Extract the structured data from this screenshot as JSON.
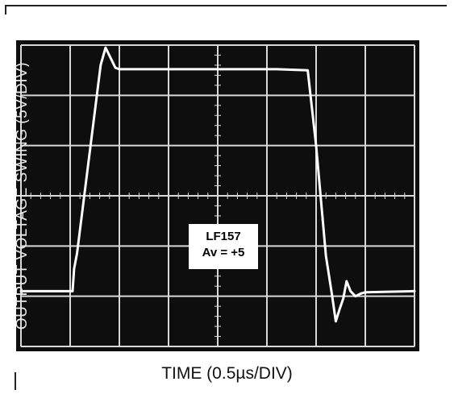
{
  "chart_data": {
    "type": "line",
    "xlabel": "TIME (0.5µs/DIV)",
    "ylabel": "OUTPUT VOLTAGE SWING (5V/DIV)",
    "annotation": [
      "LF157",
      "Av = +5"
    ],
    "grid": true,
    "grid_divisions": {
      "x": 8,
      "y": 6
    },
    "xlim": [
      0,
      8
    ],
    "ylim": [
      0,
      6
    ],
    "background_color": "#0e0e0e",
    "trace_color": "#ffffff",
    "grid_color": "#d8d8d8",
    "series": [
      {
        "x": [
          0,
          1.05,
          1.08,
          1.14,
          1.62,
          1.72,
          1.82,
          1.92,
          2.0,
          3.5,
          5.2,
          5.83,
          6.0,
          6.2,
          6.32,
          6.4,
          6.48,
          6.55,
          6.62,
          6.7,
          6.8,
          6.9,
          7.0,
          8.0
        ],
        "y": [
          1.1,
          1.1,
          1.55,
          1.85,
          5.6,
          5.95,
          5.75,
          5.55,
          5.52,
          5.52,
          5.52,
          5.5,
          4.0,
          1.8,
          1.05,
          0.5,
          0.75,
          0.95,
          1.3,
          1.1,
          1.0,
          1.05,
          1.08,
          1.1
        ]
      }
    ]
  }
}
